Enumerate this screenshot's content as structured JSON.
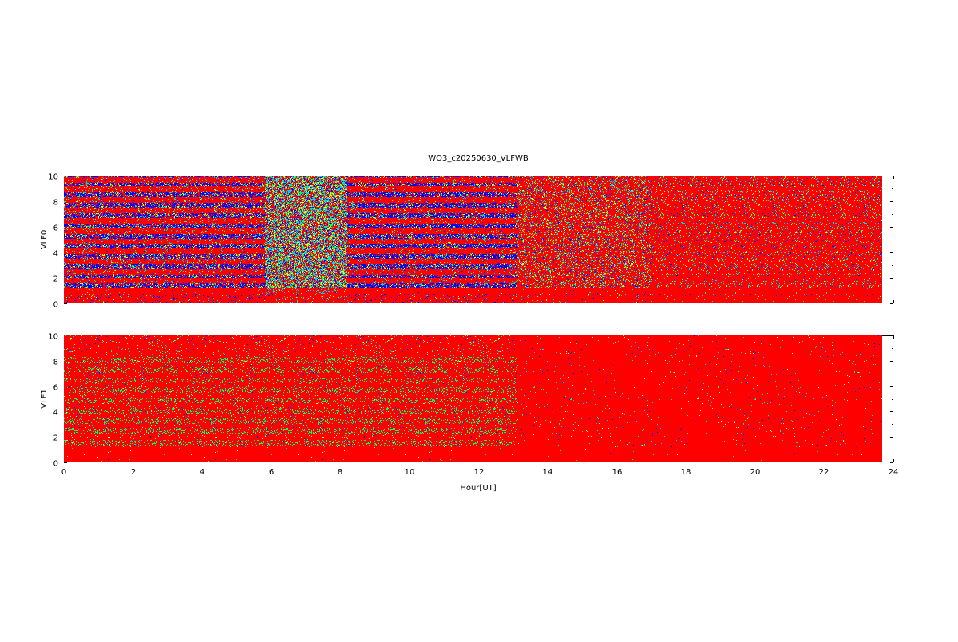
{
  "chart_data": {
    "type": "heatmap",
    "title": "WO3_c20250630_VLFWB",
    "xlabel": "Hour[UT]",
    "xlim": [
      0,
      24
    ],
    "x_ticks": [
      0,
      2,
      4,
      6,
      8,
      10,
      12,
      14,
      16,
      18,
      20,
      22,
      24
    ],
    "data_end_hour": 23.67,
    "colormap": [
      "#ff0000",
      "#ffff00",
      "#00ff66",
      "#00ccff",
      "#0000ff"
    ],
    "panels": [
      {
        "ylabel": "VLF0",
        "ylim": [
          0,
          10
        ],
        "y_ticks": [
          0,
          2,
          4,
          6,
          8,
          10
        ],
        "dominant_color": "#ff0000",
        "band_frequencies": [
          1.0,
          1.8,
          2.5,
          3.3,
          4.1,
          4.9,
          5.7,
          6.5,
          7.3,
          8.1,
          9.0,
          9.7
        ],
        "segments": [
          {
            "start": 0,
            "end": 5.8,
            "noise_level": 0.75,
            "band_contrast": 0.8,
            "band_color": "#ff0000",
            "gap_color": "#0000ff"
          },
          {
            "start": 5.8,
            "end": 8.2,
            "noise_level": 0.7,
            "band_contrast": 0.15,
            "band_color": "#00ccff",
            "gap_color": "#00ff66"
          },
          {
            "start": 8.2,
            "end": 13.1,
            "noise_level": 0.8,
            "band_contrast": 0.85,
            "band_color": "#ff0000",
            "gap_color": "#0000ff"
          },
          {
            "start": 13.1,
            "end": 17.0,
            "noise_level": 0.3,
            "band_contrast": 0.1,
            "band_color": "#ff0000",
            "gap_color": "#ffff00"
          },
          {
            "start": 17.0,
            "end": 23.67,
            "noise_level": 0.15,
            "band_contrast": 0.05,
            "band_color": "#ff0000",
            "gap_color": "#ffff00"
          }
        ]
      },
      {
        "ylabel": "VLF1",
        "ylim": [
          0,
          10
        ],
        "y_ticks": [
          0,
          2,
          4,
          6,
          8,
          10
        ],
        "dominant_color": "#ff0000",
        "band_frequencies": [
          1.6,
          2.5,
          3.3,
          4.1,
          4.9,
          5.7,
          6.5,
          7.3,
          8.1
        ],
        "segments": [
          {
            "start": 0,
            "end": 13.1,
            "noise_level": 0.06,
            "band_contrast": 0.3,
            "band_color": "#00ff66",
            "gap_color": "#ffff00"
          },
          {
            "start": 13.1,
            "end": 23.67,
            "noise_level": 0.02,
            "band_contrast": 0.0,
            "band_color": "#ff0000",
            "gap_color": "#ffff00"
          }
        ]
      }
    ]
  }
}
